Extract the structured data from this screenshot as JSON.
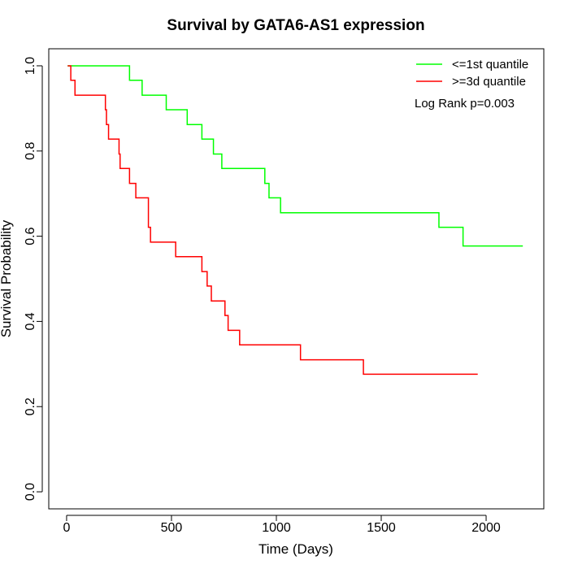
{
  "chart_data": {
    "type": "line",
    "title": "Survival by GATA6-AS1 expression",
    "xlabel": "Time (Days)",
    "ylabel": "Survival Probability",
    "xlim": [
      -85,
      2275
    ],
    "ylim": [
      -0.04,
      1.04
    ],
    "xticks": [
      0,
      500,
      1000,
      1500,
      2000
    ],
    "yticks": [
      0.0,
      0.2,
      0.4,
      0.6,
      0.8,
      1.0
    ],
    "xtick_labels": [
      "0",
      "500",
      "1000",
      "1500",
      "2000"
    ],
    "ytick_labels": [
      "0.0",
      "0.2",
      "0.4",
      "0.6",
      "0.8",
      "1.0"
    ],
    "grid": false,
    "legend_position": "top-right",
    "annotation": "Log Rank p=0.003",
    "series": [
      {
        "name": "<=1st quantile",
        "color": "#00ff00",
        "step": true,
        "x": [
          5,
          300,
          360,
          475,
          575,
          645,
          700,
          740,
          945,
          965,
          1020,
          1775,
          1890,
          2175
        ],
        "y": [
          1.0,
          0.966,
          0.931,
          0.897,
          0.862,
          0.828,
          0.793,
          0.759,
          0.724,
          0.69,
          0.655,
          0.621,
          0.577,
          0.577
        ]
      },
      {
        "name": ">=3d quantile",
        "color": "#ff0000",
        "step": true,
        "x": [
          5,
          20,
          40,
          185,
          190,
          200,
          250,
          255,
          300,
          330,
          390,
          400,
          520,
          645,
          670,
          690,
          755,
          770,
          825,
          1115,
          1415,
          1960
        ],
        "y": [
          1.0,
          0.966,
          0.931,
          0.897,
          0.862,
          0.828,
          0.793,
          0.759,
          0.724,
          0.69,
          0.621,
          0.586,
          0.552,
          0.517,
          0.483,
          0.448,
          0.414,
          0.379,
          0.345,
          0.31,
          0.276,
          0.276
        ]
      }
    ]
  }
}
